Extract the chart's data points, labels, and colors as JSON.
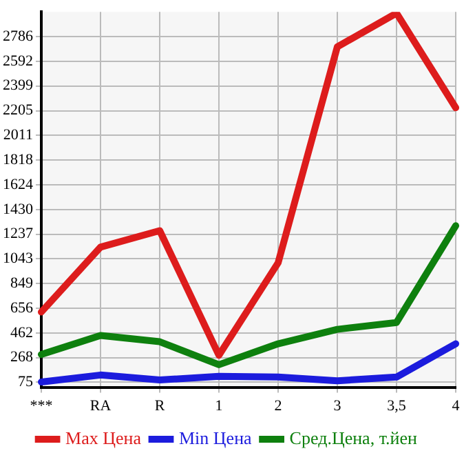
{
  "chart_data": {
    "type": "line",
    "categories": [
      "***",
      "RA",
      "R",
      "1",
      "2",
      "3",
      "3,5",
      "4"
    ],
    "series": [
      {
        "name": "Max Цена",
        "color": "#dd1c1c",
        "values": [
          626,
          1135,
          1264,
          287,
          1012,
          2706,
          2970,
          2228
        ]
      },
      {
        "name": "Min Цена",
        "color": "#1c1cdd",
        "values": [
          77,
          132,
          93,
          122,
          116,
          87,
          116,
          377
        ]
      },
      {
        "name": "Сред.Цена, т.йен",
        "color": "#0e800e",
        "values": [
          293,
          442,
          393,
          213,
          377,
          490,
          544,
          1303
        ]
      }
    ],
    "ylim": [
      36,
      2980
    ],
    "yticks": [
      75,
      268,
      462,
      656,
      849,
      1043,
      1237,
      1430,
      1624,
      1818,
      2011,
      2205,
      2399,
      2592,
      2786
    ],
    "grid": true,
    "legend": "bottom",
    "marker": "none",
    "line_style": "solid"
  }
}
